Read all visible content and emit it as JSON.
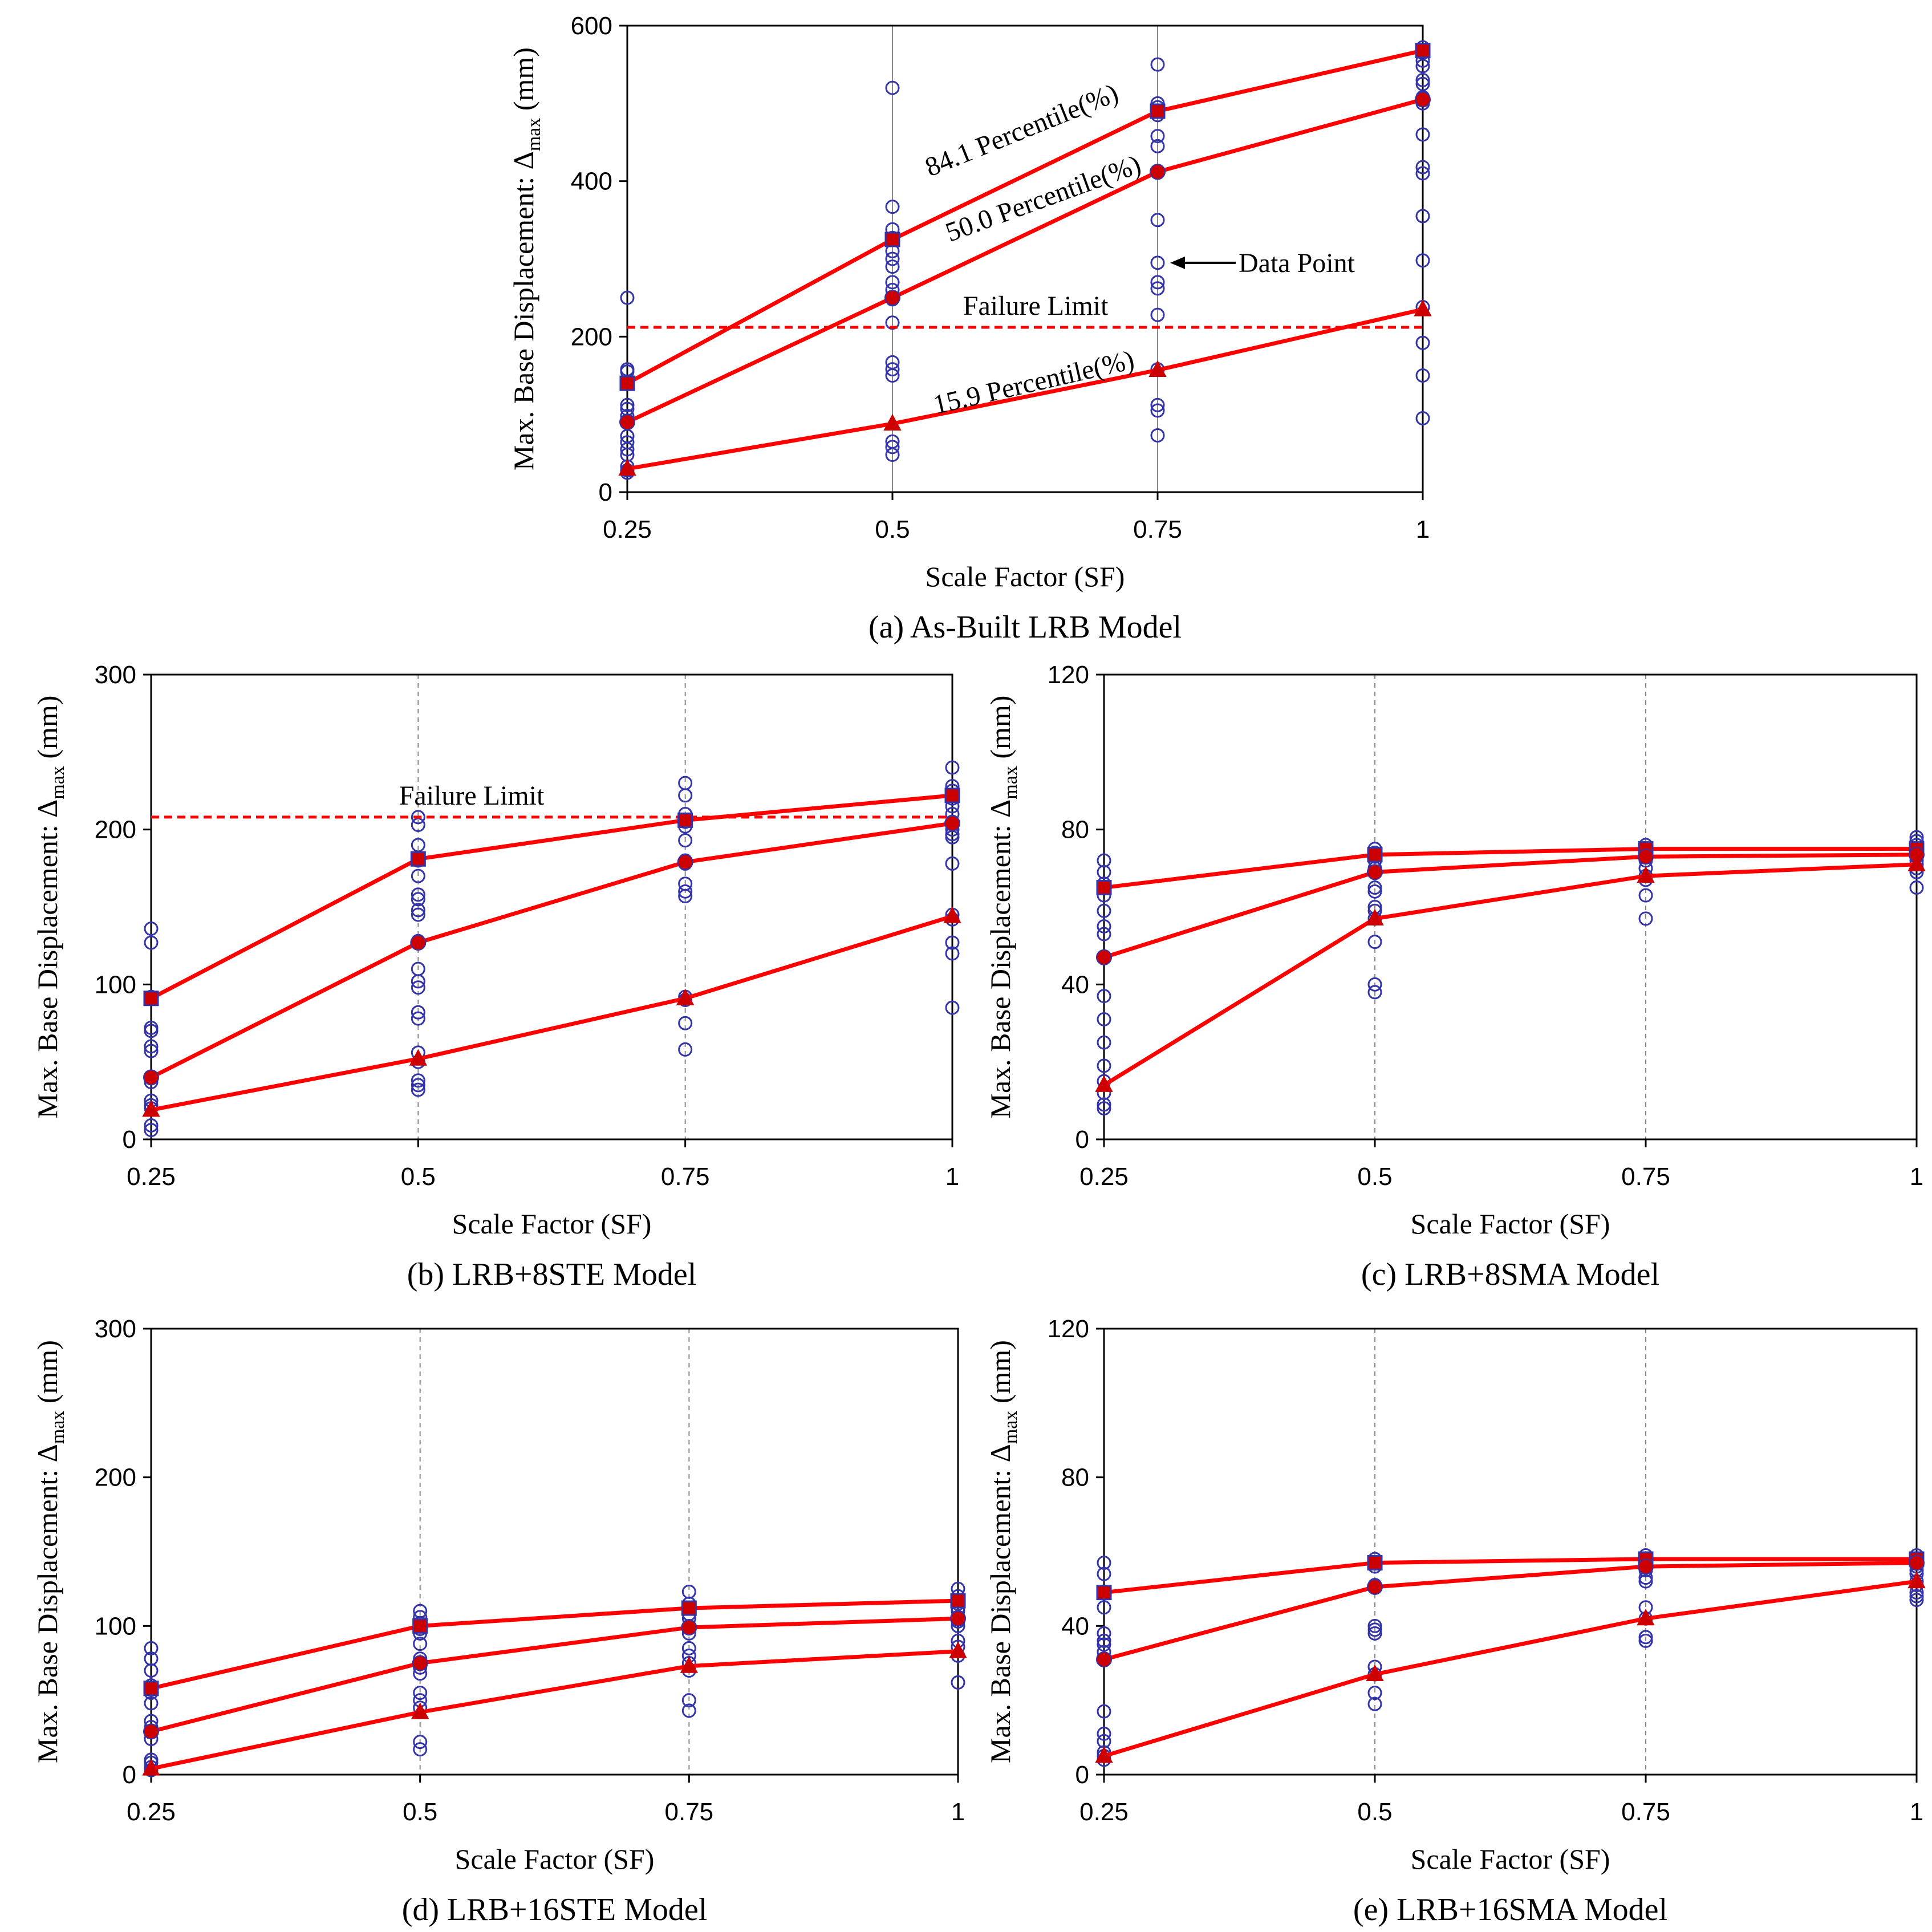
{
  "figure": {
    "colors": {
      "curve": "#ff0000",
      "marker_curve": "#cc0000",
      "data_point": "#3333aa",
      "axis": "#000000",
      "grid": "#888888"
    }
  },
  "chart_data": [
    {
      "id": "a",
      "type": "scatter",
      "caption": "(a) As-Built LRB Model",
      "xlabel": "Scale Factor (SF)",
      "ylabel": "Max. Base Displacement: Δmax (mm)",
      "ylabel_main": "Max. Base Displacement: Δ",
      "ylabel_sub": "max",
      "ylabel_tail": " (mm)",
      "x_ticks": [
        0.25,
        0.5,
        0.75,
        1
      ],
      "x_tick_labels": [
        "0.25",
        "0.5",
        "0.75",
        "1"
      ],
      "xlim": [
        0.25,
        1
      ],
      "ylim": [
        0,
        600
      ],
      "y_ticks": [
        0,
        200,
        400,
        600
      ],
      "y_tick_labels": [
        "0",
        "200",
        "400",
        "600"
      ],
      "grid": "vertical-solid",
      "scatter_points": [
        {
          "x": 0.25,
          "ys": [
            250,
            158,
            155,
            112,
            107,
            98,
            92,
            72,
            64,
            55,
            48,
            33,
            28,
            25
          ]
        },
        {
          "x": 0.5,
          "ys": [
            520,
            367,
            338,
            327,
            310,
            300,
            290,
            270,
            260,
            248,
            218,
            167,
            158,
            150,
            65,
            58,
            48
          ]
        },
        {
          "x": 0.75,
          "ys": [
            550,
            500,
            495,
            485,
            458,
            445,
            412,
            350,
            295,
            270,
            262,
            228,
            158,
            112,
            105,
            73
          ]
        },
        {
          "x": 1,
          "ys": [
            572,
            565,
            555,
            548,
            530,
            525,
            508,
            500,
            460,
            418,
            410,
            355,
            298,
            238,
            192,
            150,
            95
          ]
        }
      ],
      "series": [
        {
          "name": "84.1 Percentile(%)",
          "marker": "square",
          "values": [
            140,
            325,
            490,
            568
          ]
        },
        {
          "name": "50.0 Percentile(%)",
          "marker": "circle",
          "values": [
            90,
            250,
            412,
            505
          ]
        },
        {
          "name": "15.9 Percentile(%)",
          "marker": "triangle",
          "values": [
            30,
            88,
            157,
            235
          ]
        }
      ],
      "failure_limit": {
        "value": 212,
        "label": "Failure Limit"
      },
      "curve_labels": [
        "84.1 Percentile(%)",
        "50.0 Percentile(%)",
        "15.9 Percentile(%)"
      ],
      "data_point_annotation": "Data Point"
    },
    {
      "id": "b",
      "type": "scatter",
      "caption": "(b) LRB+8STE Model",
      "xlabel": "Scale Factor (SF)",
      "ylabel": "Max. Base Displacement: Δmax (mm)",
      "ylabel_main": "Max. Base Displacement: Δ",
      "ylabel_sub": "max",
      "ylabel_tail": " (mm)",
      "x_ticks": [
        0.25,
        0.5,
        0.75,
        1
      ],
      "x_tick_labels": [
        "0.25",
        "0.5",
        "0.75",
        "1"
      ],
      "xlim": [
        0.25,
        1
      ],
      "ylim": [
        0,
        300
      ],
      "y_ticks": [
        0,
        100,
        200,
        300
      ],
      "y_tick_labels": [
        "0",
        "100",
        "200",
        "300"
      ],
      "grid": "vertical-dashed",
      "scatter_points": [
        {
          "x": 0.25,
          "ys": [
            136,
            127,
            92,
            72,
            70,
            60,
            57,
            40,
            37,
            25,
            22,
            20,
            9,
            6
          ]
        },
        {
          "x": 0.5,
          "ys": [
            208,
            203,
            190,
            180,
            170,
            158,
            155,
            148,
            145,
            128,
            110,
            102,
            98,
            82,
            78,
            56,
            50,
            38,
            35,
            32
          ]
        },
        {
          "x": 0.75,
          "ys": [
            230,
            222,
            210,
            205,
            202,
            193,
            180,
            178,
            165,
            160,
            157,
            92,
            90,
            75,
            58
          ]
        },
        {
          "x": 1,
          "ys": [
            240,
            228,
            225,
            220,
            215,
            210,
            205,
            200,
            197,
            195,
            178,
            145,
            142,
            127,
            120,
            85
          ]
        }
      ],
      "series": [
        {
          "name": "84.1 Percentile(%)",
          "marker": "square",
          "values": [
            91,
            181,
            206,
            222
          ]
        },
        {
          "name": "50.0 Percentile(%)",
          "marker": "circle",
          "values": [
            40,
            127,
            179,
            204
          ]
        },
        {
          "name": "15.9 Percentile(%)",
          "marker": "triangle",
          "values": [
            19,
            52,
            91,
            144
          ]
        }
      ],
      "failure_limit": {
        "value": 208,
        "label": "Failure Limit"
      }
    },
    {
      "id": "c",
      "type": "scatter",
      "caption": "(c) LRB+8SMA Model",
      "xlabel": "Scale Factor (SF)",
      "ylabel": "Max. Base Displacement: Δmax (mm)",
      "ylabel_main": "Max. Base Displacement: Δ",
      "ylabel_sub": "max",
      "ylabel_tail": " (mm)",
      "x_ticks": [
        0.25,
        0.5,
        0.75,
        1
      ],
      "x_tick_labels": [
        "0.25",
        "0.5",
        "0.75",
        "1"
      ],
      "xlim": [
        0.25,
        1
      ],
      "ylim": [
        0,
        120
      ],
      "y_ticks": [
        0,
        40,
        80,
        120
      ],
      "y_tick_labels": [
        "0",
        "40",
        "80",
        "120"
      ],
      "grid": "vertical-dashed",
      "scatter_points": [
        {
          "x": 0.25,
          "ys": [
            72,
            69,
            66,
            63,
            59,
            55,
            53,
            47,
            37,
            31,
            25,
            19,
            15,
            12,
            9,
            8
          ]
        },
        {
          "x": 0.5,
          "ys": [
            75,
            74,
            73,
            72,
            70,
            69,
            65,
            64,
            60,
            59,
            57,
            51,
            40,
            38
          ]
        },
        {
          "x": 0.75,
          "ys": [
            76,
            75,
            74,
            73,
            72,
            70,
            68,
            67,
            63,
            57
          ]
        },
        {
          "x": 1,
          "ys": [
            78,
            77,
            76,
            75,
            74,
            73,
            72,
            71,
            70,
            69,
            65
          ]
        }
      ],
      "series": [
        {
          "name": "84.1 Percentile(%)",
          "marker": "square",
          "values": [
            65,
            73.5,
            75,
            75
          ]
        },
        {
          "name": "50.0 Percentile(%)",
          "marker": "circle",
          "values": [
            47,
            69,
            73,
            73.5
          ]
        },
        {
          "name": "15.9 Percentile(%)",
          "marker": "triangle",
          "values": [
            14,
            57,
            68,
            71
          ]
        }
      ]
    },
    {
      "id": "d",
      "type": "scatter",
      "caption": "(d) LRB+16STE Model",
      "xlabel": "Scale Factor (SF)",
      "ylabel": "Max. Base Displacement: Δmax (mm)",
      "ylabel_main": "Max. Base Displacement: Δ",
      "ylabel_sub": "max",
      "ylabel_tail": " (mm)",
      "x_ticks": [
        0.25,
        0.5,
        0.75,
        1
      ],
      "x_tick_labels": [
        "0.25",
        "0.5",
        "0.75",
        "1"
      ],
      "xlim": [
        0.25,
        1
      ],
      "ylim": [
        0,
        300
      ],
      "y_ticks": [
        0,
        100,
        200,
        300
      ],
      "y_tick_labels": [
        "0",
        "100",
        "200",
        "300"
      ],
      "grid": "vertical-dashed",
      "scatter_points": [
        {
          "x": 0.25,
          "ys": [
            85,
            78,
            70,
            60,
            55,
            48,
            36,
            32,
            29,
            24,
            10,
            8,
            5,
            3
          ]
        },
        {
          "x": 0.5,
          "ys": [
            110,
            106,
            102,
            100,
            98,
            95,
            88,
            78,
            75,
            72,
            68,
            55,
            50,
            45,
            22,
            17
          ]
        },
        {
          "x": 0.75,
          "ys": [
            123,
            115,
            112,
            108,
            105,
            100,
            95,
            85,
            80,
            75,
            70,
            50,
            43
          ]
        },
        {
          "x": 1,
          "ys": [
            125,
            120,
            117,
            115,
            112,
            110,
            106,
            103,
            100,
            90,
            86,
            80,
            62
          ]
        }
      ],
      "series": [
        {
          "name": "84.1 Percentile(%)",
          "marker": "square",
          "values": [
            58,
            100,
            112,
            117
          ]
        },
        {
          "name": "50.0 Percentile(%)",
          "marker": "circle",
          "values": [
            29,
            75,
            99,
            105
          ]
        },
        {
          "name": "15.9 Percentile(%)",
          "marker": "triangle",
          "values": [
            4,
            42,
            73,
            83
          ]
        }
      ]
    },
    {
      "id": "e",
      "type": "scatter",
      "caption": "(e) LRB+16SMA Model",
      "xlabel": "Scale Factor (SF)",
      "ylabel": "Max. Base Displacement: Δmax (mm)",
      "ylabel_main": "Max. Base Displacement: Δ",
      "ylabel_sub": "max",
      "ylabel_tail": " (mm)",
      "x_ticks": [
        0.25,
        0.5,
        0.75,
        1
      ],
      "x_tick_labels": [
        "0.25",
        "0.5",
        "0.75",
        "1"
      ],
      "xlim": [
        0.25,
        1
      ],
      "ylim": [
        0,
        120
      ],
      "y_ticks": [
        0,
        40,
        80,
        120
      ],
      "y_tick_labels": [
        "0",
        "40",
        "80",
        "120"
      ],
      "grid": "vertical-dashed",
      "scatter_points": [
        {
          "x": 0.25,
          "ys": [
            57,
            54,
            49,
            45,
            38,
            36,
            35,
            33,
            31,
            17,
            11,
            9,
            6,
            5,
            4
          ]
        },
        {
          "x": 0.5,
          "ys": [
            58,
            57,
            56,
            51,
            40,
            39,
            38,
            29,
            27,
            22,
            19
          ]
        },
        {
          "x": 0.75,
          "ys": [
            59,
            58,
            57,
            56,
            55,
            53,
            52,
            45,
            42,
            37,
            36
          ]
        },
        {
          "x": 1,
          "ys": [
            59,
            58,
            57,
            56,
            55,
            54,
            52,
            51,
            49,
            48,
            47
          ]
        }
      ],
      "series": [
        {
          "name": "84.1 Percentile(%)",
          "marker": "square",
          "values": [
            49,
            57,
            58,
            58
          ]
        },
        {
          "name": "50.0 Percentile(%)",
          "marker": "circle",
          "values": [
            31,
            50.5,
            56,
            57
          ]
        },
        {
          "name": "15.9 Percentile(%)",
          "marker": "triangle",
          "values": [
            5,
            27,
            42,
            52
          ]
        }
      ]
    }
  ]
}
